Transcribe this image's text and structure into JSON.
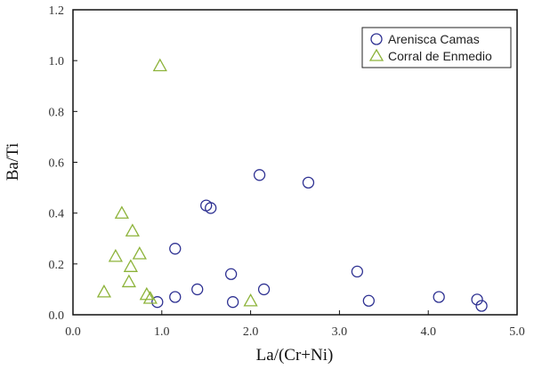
{
  "chart_data": {
    "type": "scatter",
    "xlabel": "La/(Cr+Ni)",
    "ylabel": "Ba/Ti",
    "xlim": [
      0,
      5
    ],
    "ylim": [
      0,
      1.2
    ],
    "x_ticks": [
      "0.0",
      "1.0",
      "2.0",
      "3.0",
      "4.0",
      "5.0"
    ],
    "y_ticks": [
      "0.0",
      "0.2",
      "0.4",
      "0.6",
      "0.8",
      "1.0",
      "1.2"
    ],
    "grid": false,
    "legend_position": "top-right",
    "series": [
      {
        "name": "Arenisca Camas",
        "marker": "circle",
        "color": "#2e3192",
        "points": [
          [
            0.95,
            0.05
          ],
          [
            1.15,
            0.26
          ],
          [
            1.15,
            0.07
          ],
          [
            1.4,
            0.1
          ],
          [
            1.5,
            0.43
          ],
          [
            1.55,
            0.42
          ],
          [
            1.78,
            0.16
          ],
          [
            1.8,
            0.05
          ],
          [
            2.1,
            0.55
          ],
          [
            2.15,
            0.1
          ],
          [
            2.65,
            0.52
          ],
          [
            3.2,
            0.17
          ],
          [
            3.33,
            0.055
          ],
          [
            4.12,
            0.07
          ],
          [
            4.55,
            0.06
          ],
          [
            4.6,
            0.035
          ]
        ]
      },
      {
        "name": "Corral de Enmedio",
        "marker": "triangle",
        "color": "#8db33a",
        "points": [
          [
            0.35,
            0.09
          ],
          [
            0.48,
            0.23
          ],
          [
            0.55,
            0.4
          ],
          [
            0.63,
            0.13
          ],
          [
            0.65,
            0.19
          ],
          [
            0.67,
            0.33
          ],
          [
            0.75,
            0.24
          ],
          [
            0.83,
            0.08
          ],
          [
            0.87,
            0.065
          ],
          [
            0.98,
            0.98
          ],
          [
            2.0,
            0.055
          ]
        ]
      }
    ]
  }
}
